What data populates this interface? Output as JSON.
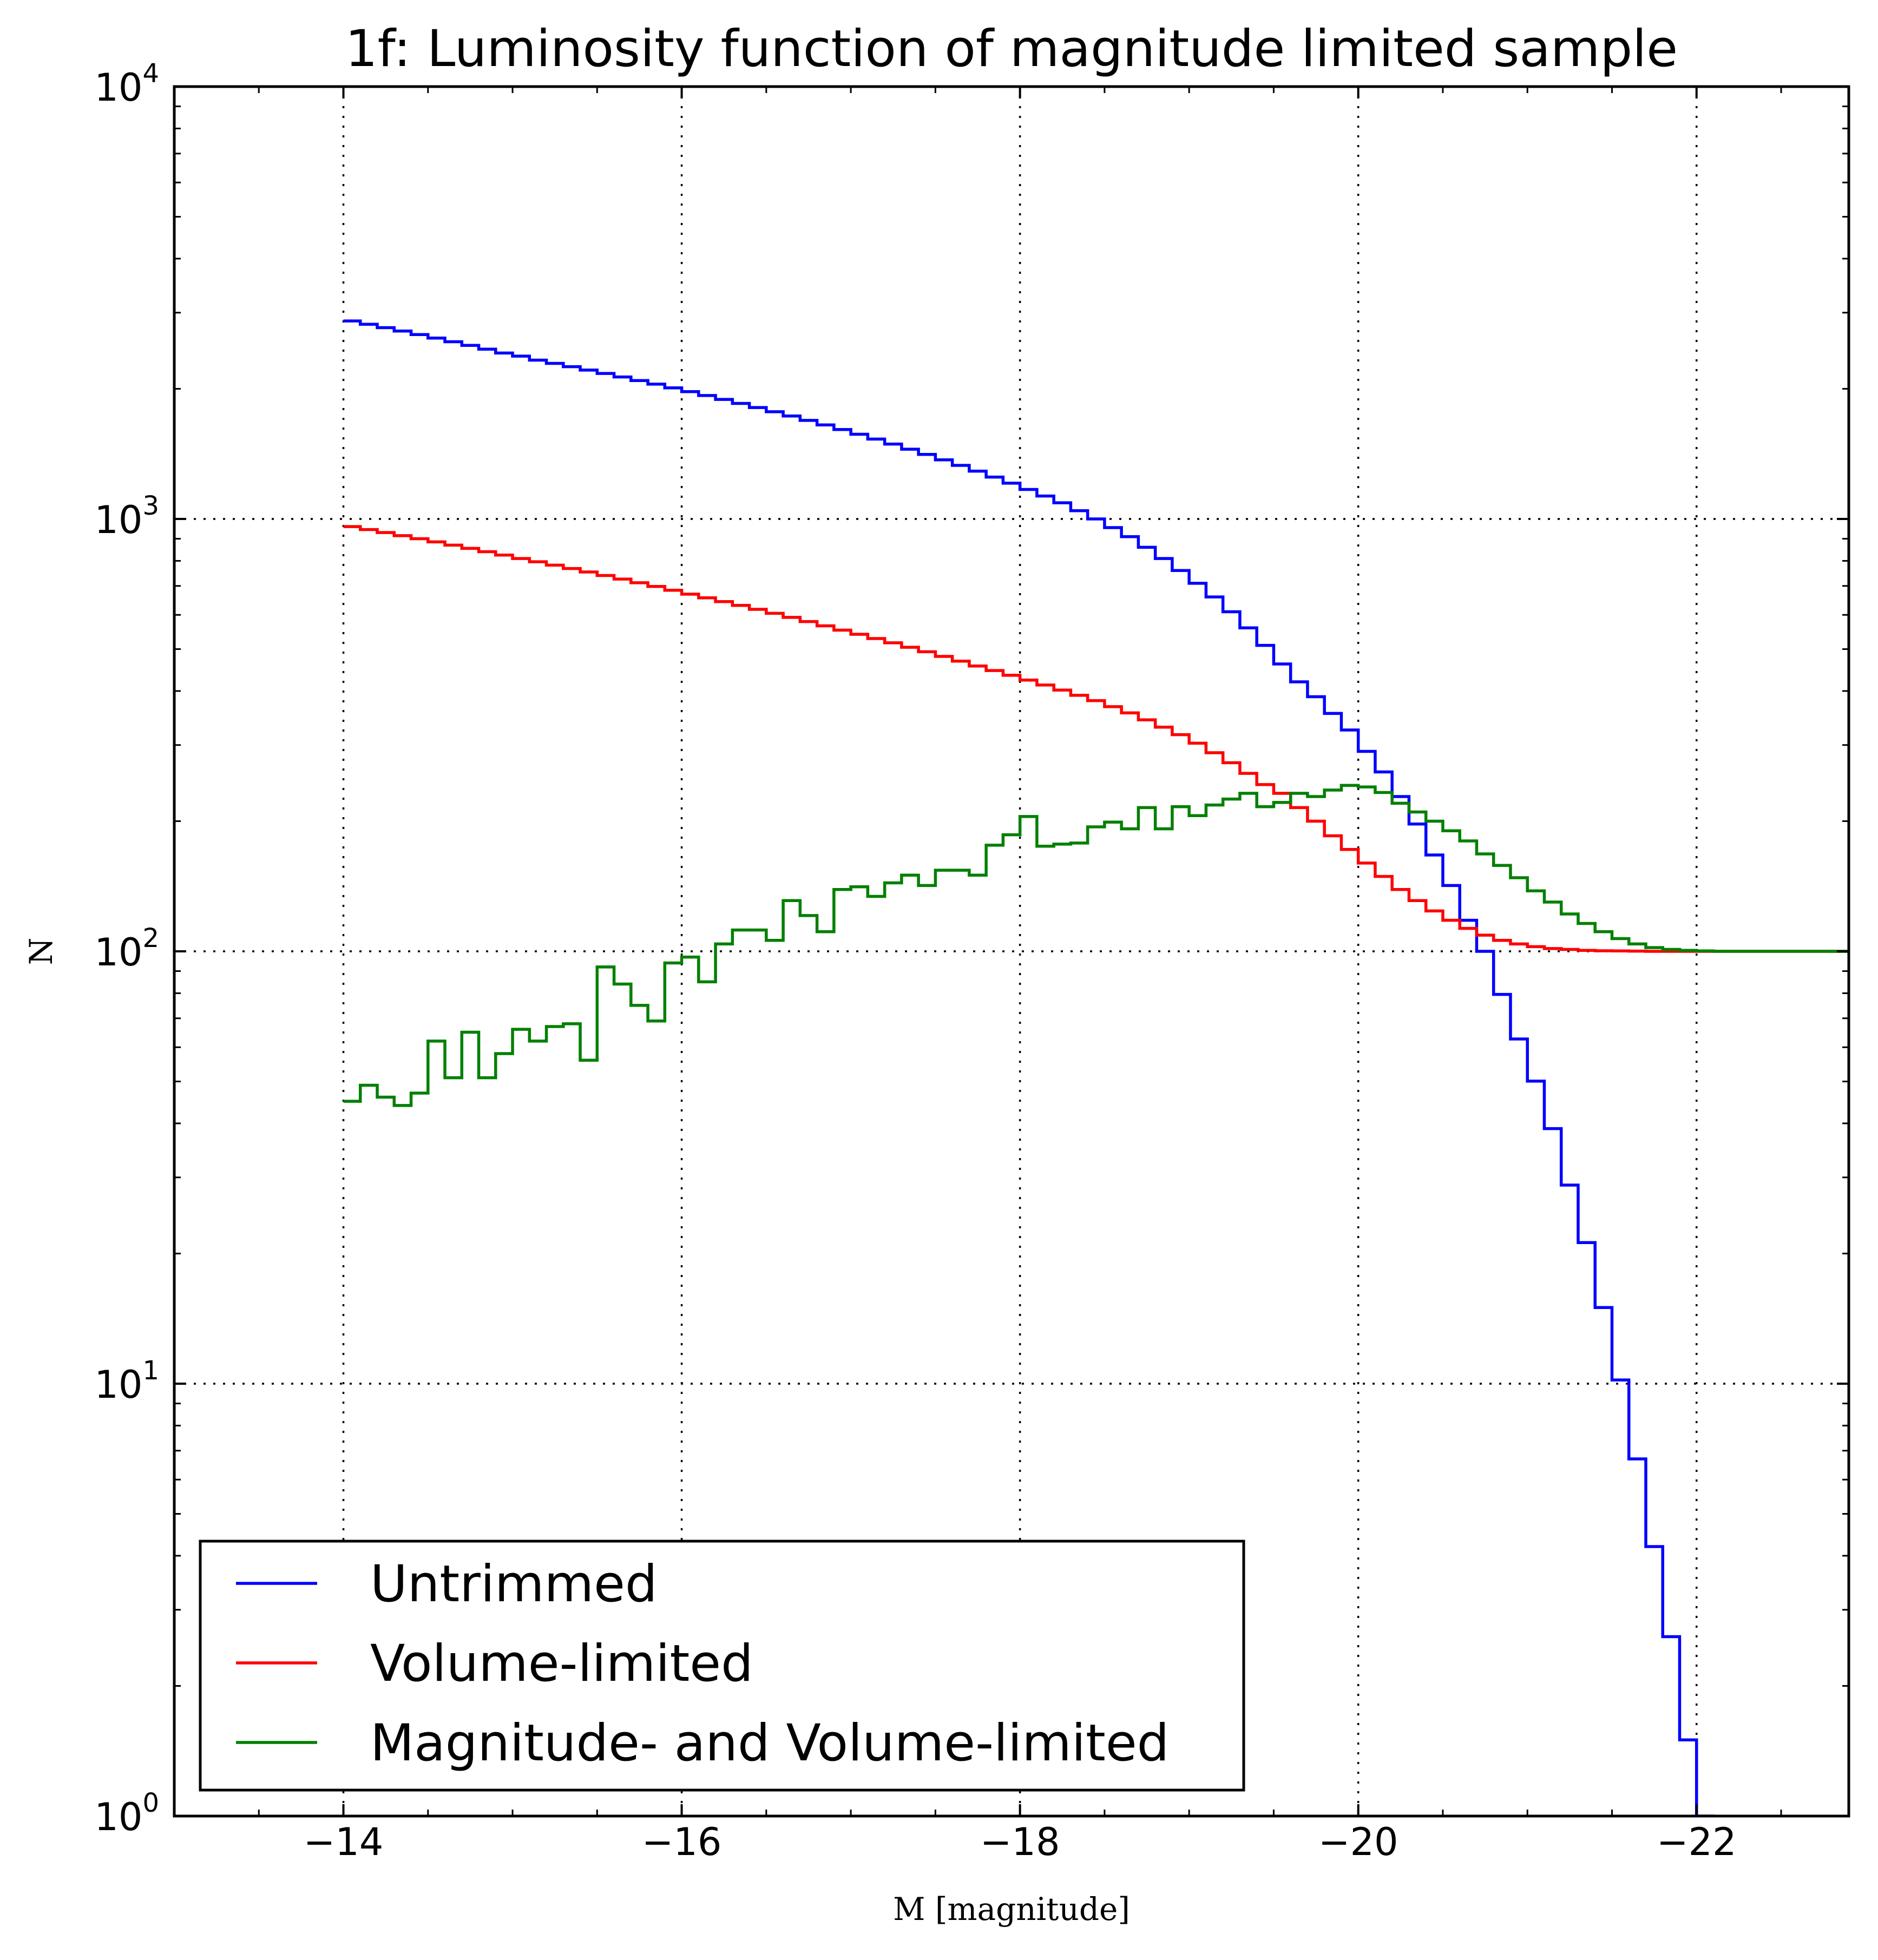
{
  "chart_data": {
    "type": "line",
    "drawstyle": "steps-post",
    "title": "1f: Luminosity function of magnitude limited sample",
    "xlabel": "M [magnitude]",
    "ylabel": "N",
    "xlim": [
      -13,
      -22.9
    ],
    "ylim": [
      1,
      10000
    ],
    "yscale": "log",
    "x_ticks": [
      -14,
      -16,
      -18,
      -20,
      -22
    ],
    "x_tick_labels": [
      "−14",
      "−16",
      "−18",
      "−20",
      "−22"
    ],
    "y_ticks": [
      {
        "value": 1,
        "base": "10",
        "exp": "0"
      },
      {
        "value": 10,
        "base": "10",
        "exp": "1"
      },
      {
        "value": 100,
        "base": "10",
        "exp": "2"
      },
      {
        "value": 1000,
        "base": "10",
        "exp": "3"
      },
      {
        "value": 10000,
        "base": "10",
        "exp": "4"
      }
    ],
    "grid": true,
    "legend": "lower-left",
    "series": [
      {
        "name": "Untrimmed",
        "color": "#0000ff",
        "x_start": -14.0,
        "x_step": -0.1,
        "values": [
          2870,
          2820,
          2770,
          2720,
          2670,
          2620,
          2570,
          2520,
          2470,
          2420,
          2380,
          2330,
          2290,
          2250,
          2210,
          2170,
          2130,
          2090,
          2050,
          2010,
          1970,
          1930,
          1890,
          1850,
          1810,
          1770,
          1730,
          1690,
          1650,
          1610,
          1570,
          1530,
          1490,
          1450,
          1410,
          1370,
          1330,
          1290,
          1250,
          1210,
          1170,
          1130,
          1090,
          1045,
          1000,
          955,
          910,
          860,
          810,
          760,
          710,
          660,
          610,
          560,
          510,
          462,
          420,
          388,
          355,
          325,
          290,
          260,
          228,
          197,
          167,
          142,
          118,
          100,
          79.5,
          62.7,
          50.1,
          38.9,
          28.8,
          21.2,
          15.0,
          10.2,
          6.7,
          4.2,
          2.6,
          1.5,
          1.0
        ]
      },
      {
        "name": "Volume-limited",
        "color": "#ff0000",
        "x_start": -14.0,
        "x_step": -0.1,
        "values": [
          960,
          945,
          930,
          915,
          900,
          885,
          870,
          855,
          840,
          825,
          810,
          796,
          782,
          768,
          754,
          740,
          726,
          712,
          698,
          684,
          670,
          657,
          644,
          631,
          618,
          605,
          592,
          579,
          566,
          553,
          541,
          529,
          517,
          505,
          493,
          481,
          469,
          457,
          446,
          435,
          424,
          413,
          402,
          391,
          380,
          368,
          356,
          343,
          330,
          317,
          303,
          288,
          273,
          258,
          243,
          232,
          215,
          200,
          185,
          172,
          160,
          149,
          139,
          131,
          124,
          118,
          113,
          109,
          106,
          104,
          102.5,
          101.5,
          101,
          100.5,
          100.3,
          100.2,
          100.1,
          100,
          100,
          100,
          100,
          100,
          100,
          100,
          100,
          100,
          100,
          100,
          100,
          100
        ]
      },
      {
        "name": "Magnitude- and Volume-limited",
        "color": "#008000",
        "x_start": -14.0,
        "x_step": -0.1,
        "values": [
          45,
          49,
          46,
          44,
          47,
          62,
          51,
          65,
          51,
          58,
          66,
          62,
          67,
          68,
          56,
          92,
          84,
          75,
          69,
          94,
          97,
          85,
          104,
          112,
          112,
          106,
          131,
          121,
          111,
          139,
          141,
          134,
          144,
          150,
          142,
          154,
          154,
          150,
          176,
          186,
          205,
          175,
          177,
          178,
          194,
          199,
          192,
          215,
          192,
          216,
          206,
          218,
          225,
          232,
          216,
          221,
          232,
          228,
          236,
          242,
          240,
          233,
          220,
          210,
          200,
          190,
          180,
          168,
          158,
          148,
          138,
          130,
          122,
          116,
          111,
          107,
          104,
          102,
          101,
          100.5,
          100.2,
          100,
          100,
          100,
          100,
          100,
          100,
          100,
          100,
          100
        ]
      }
    ]
  }
}
